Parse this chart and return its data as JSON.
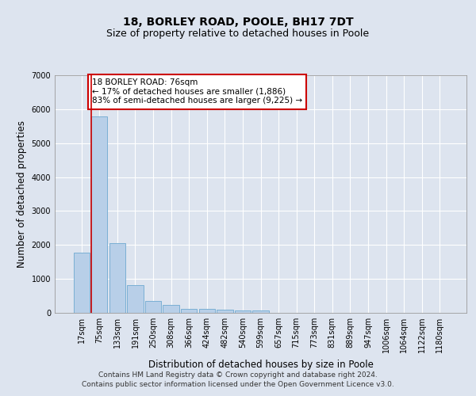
{
  "title_line1": "18, BORLEY ROAD, POOLE, BH17 7DT",
  "title_line2": "Size of property relative to detached houses in Poole",
  "xlabel": "Distribution of detached houses by size in Poole",
  "ylabel": "Number of detached properties",
  "categories": [
    "17sqm",
    "75sqm",
    "133sqm",
    "191sqm",
    "250sqm",
    "308sqm",
    "366sqm",
    "424sqm",
    "482sqm",
    "540sqm",
    "599sqm",
    "657sqm",
    "715sqm",
    "773sqm",
    "831sqm",
    "889sqm",
    "947sqm",
    "1006sqm",
    "1064sqm",
    "1122sqm",
    "1180sqm"
  ],
  "values": [
    1780,
    5780,
    2060,
    820,
    350,
    240,
    120,
    110,
    100,
    80,
    75,
    0,
    0,
    0,
    0,
    0,
    0,
    0,
    0,
    0,
    0
  ],
  "bar_color": "#b8cfe8",
  "bar_edge_color": "#7aafd4",
  "highlight_line_color": "#cc0000",
  "annotation_text": "18 BORLEY ROAD: 76sqm\n← 17% of detached houses are smaller (1,886)\n83% of semi-detached houses are larger (9,225) →",
  "annotation_box_color": "#ffffff",
  "annotation_box_edge": "#cc0000",
  "ylim": [
    0,
    7000
  ],
  "yticks": [
    0,
    1000,
    2000,
    3000,
    4000,
    5000,
    6000,
    7000
  ],
  "footer_line1": "Contains HM Land Registry data © Crown copyright and database right 2024.",
  "footer_line2": "Contains public sector information licensed under the Open Government Licence v3.0.",
  "background_color": "#dde4ef",
  "plot_bg_color": "#dde4ef",
  "grid_color": "#ffffff",
  "title_fontsize": 10,
  "subtitle_fontsize": 9,
  "label_fontsize": 8.5,
  "tick_fontsize": 7,
  "footer_fontsize": 6.5
}
